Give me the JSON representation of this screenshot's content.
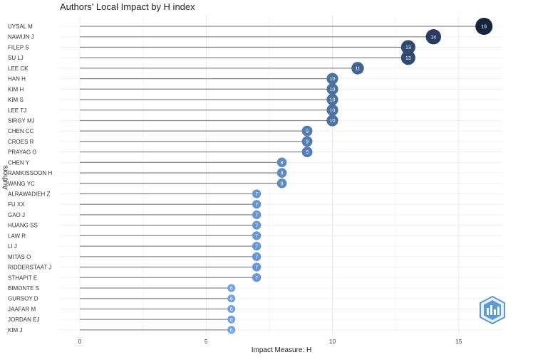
{
  "chart_data": {
    "type": "lollipop",
    "title": "Authors' Local Impact by H index",
    "xlabel": "Impact Measure: H",
    "ylabel": "Authors",
    "xlim": [
      0,
      16
    ],
    "xticks": [
      0,
      5,
      10,
      15
    ],
    "grid": true,
    "authors": [
      "UYSAL M",
      "NAWIJN J",
      "FILEP S",
      "SU LJ",
      "LEE CK",
      "HAN H",
      "KIM H",
      "KIM S",
      "LEE TJ",
      "SIRGY MJ",
      "CHEN CC",
      "CROES R",
      "PRAYAG G",
      "CHEN Y",
      "RAMKISSOON H",
      "WANG YC",
      "ALRAWADIEH Z",
      "FU XX",
      "GAO J",
      "HUANG SS",
      "LAW R",
      "LI J",
      "MITAS O",
      "RIDDERSTAAT J",
      "STHAPIT E",
      "BIMONTE S",
      "GURSOY D",
      "JAAFAR M",
      "JORDAN EJ",
      "KIM J"
    ],
    "values": [
      16,
      14,
      13,
      13,
      11,
      10,
      10,
      10,
      10,
      10,
      9,
      9,
      9,
      8,
      8,
      8,
      7,
      7,
      7,
      7,
      7,
      7,
      7,
      7,
      7,
      6,
      6,
      6,
      6,
      6
    ]
  },
  "colors": {
    "low": "#6fa3e6",
    "high": "#16243d",
    "grid": "#ececec",
    "stem": "#8a8a8a"
  },
  "logo": {
    "name": "bibliometrix-logo-icon"
  }
}
